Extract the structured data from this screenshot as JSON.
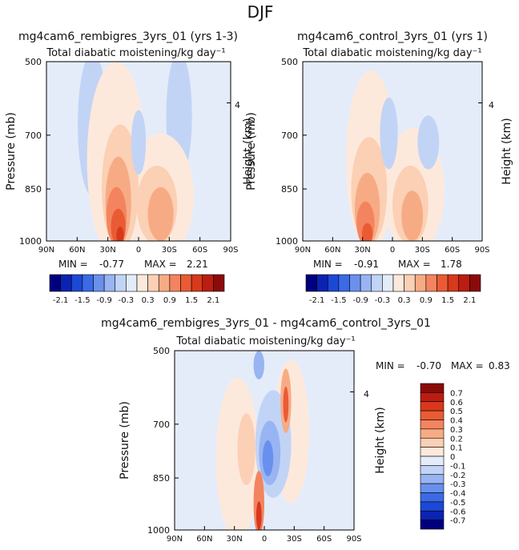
{
  "figure": {
    "title": "DJF",
    "x_ticks": [
      "90N",
      "60N",
      "30N",
      "0",
      "30S",
      "60S",
      "90S"
    ],
    "y_ticks": [
      "500",
      "700",
      "850",
      "1000"
    ],
    "right_tick": "4",
    "ylabel": "Pressure (mb)",
    "ylabel_right": "Height (km)"
  },
  "chart_data": [
    {
      "type": "heatmap",
      "title": "mg4cam6_rembigres_3yrs_01 (yrs 1-3)",
      "subtitle": "Total diabatic moistening/kg day⁻¹",
      "xlabel": "",
      "ylabel": "Pressure (mb)",
      "ylim": [
        1000,
        500
      ],
      "min_label": "MIN =",
      "min": "-0.77",
      "max_label": "MAX =",
      "max": "2.21",
      "colorbar_labels": [
        "-2.1",
        "-1.5",
        "-0.9",
        "-0.3",
        "0.3",
        "0.9",
        "1.5",
        "2.1"
      ]
    },
    {
      "type": "heatmap",
      "title": "mg4cam6_control_3yrs_01 (yrs 1)",
      "subtitle": "Total diabatic moistening/kg day⁻¹",
      "xlabel": "",
      "ylabel": "Pressure (mb)",
      "ylim": [
        1000,
        500
      ],
      "min_label": "MIN =",
      "min": "-0.91",
      "max_label": "MAX =",
      "max": "1.78",
      "colorbar_labels": [
        "-2.1",
        "-1.5",
        "-0.9",
        "-0.3",
        "0.3",
        "0.9",
        "1.5",
        "2.1"
      ]
    },
    {
      "type": "heatmap",
      "title": "mg4cam6_rembigres_3yrs_01 - mg4cam6_control_3yrs_01",
      "subtitle": "Total diabatic moistening/kg day⁻¹",
      "xlabel": "",
      "ylabel": "Pressure (mb)",
      "ylim": [
        1000,
        500
      ],
      "min_label": "MIN =",
      "min": "-0.70",
      "max_label": "MAX =",
      "max": "0.83",
      "colorbar_labels": [
        "0.7",
        "0.6",
        "0.5",
        "0.4",
        "0.3",
        "0.2",
        "0.1",
        "0",
        "-0.1",
        "-0.2",
        "-0.3",
        "-0.4",
        "-0.5",
        "-0.6",
        "-0.7"
      ]
    }
  ],
  "colors": {
    "palette": [
      "#00007f",
      "#0b23b2",
      "#1c48d6",
      "#3a6ae6",
      "#6a90ee",
      "#98b4f2",
      "#c2d4f6",
      "#e4ecfa",
      "#fde9dc",
      "#fbd0b4",
      "#f7ab85",
      "#f3845f",
      "#ea5b34",
      "#d8381b",
      "#bb1d10",
      "#8b0a0a"
    ],
    "diff_palette": [
      "#8b0a0a",
      "#bb1d10",
      "#d8381b",
      "#ea5b34",
      "#f3845f",
      "#f7ab85",
      "#fbd0b4",
      "#fde9dc",
      "#e4ecfa",
      "#c2d4f6",
      "#98b4f2",
      "#6a90ee",
      "#3a6ae6",
      "#1c48d6",
      "#0b23b2",
      "#00007f"
    ]
  }
}
